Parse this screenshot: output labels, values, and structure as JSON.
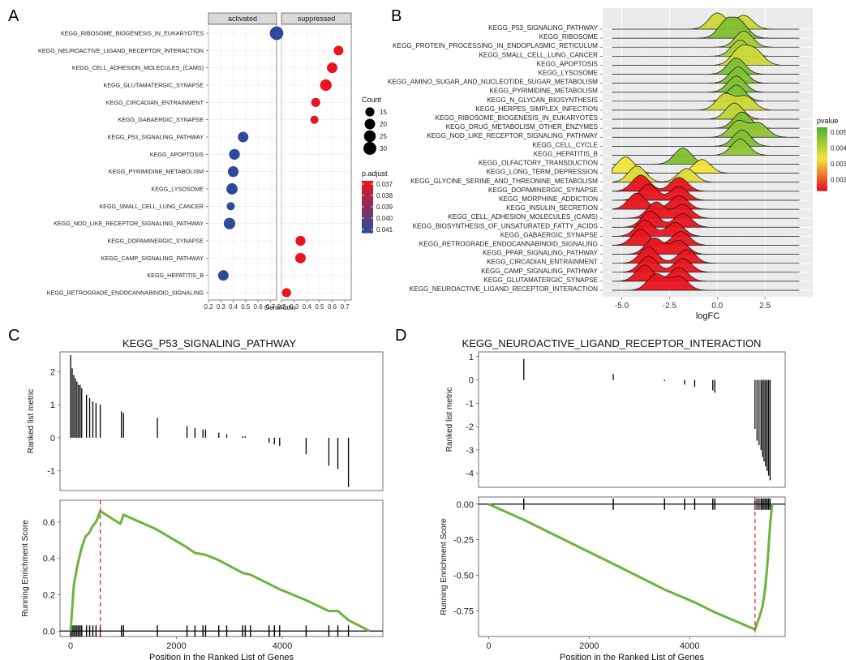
{
  "panel_labels": [
    "A",
    "B",
    "C",
    "D"
  ],
  "chart_data": [
    {
      "type": "scatter",
      "panel": "A",
      "facets": [
        "activated",
        "suppressed"
      ],
      "xlabel": "GeneRatio",
      "xticks": [
        0.2,
        0.3,
        0.4,
        0.5,
        0.6,
        0.7
      ],
      "xlim": [
        0.2,
        0.75
      ],
      "size_legend": {
        "title": "Count",
        "values": [
          15,
          20,
          25,
          30
        ]
      },
      "color_legend": {
        "title": "p.adjust",
        "ticks": [
          "0.037",
          "0.038",
          "0.039",
          "0.040",
          "0.041"
        ],
        "low_color": "#e8141e",
        "high_color": "#2d4a9a"
      },
      "categories": [
        "KEGG_RIBOSOME_BIOGENESIS_IN_EUKARYOTES",
        "KEGG_NEUROACTIVE_LIGAND_RECEPTOR_INTERACTION",
        "KEGG_CELL_ADHESION_MOLECULES_(CAMS)",
        "KEGG_GLUTAMATERGIC_SYNAPSE",
        "KEGG_CIRCADIAN_ENTRAINMENT",
        "KEGG_GABAERGIC_SYNAPSE",
        "KEGG_P53_SIGNALING_PATHWAY",
        "KEGG_APOPTOSIS",
        "KEGG_PYRIMIDINE_METABOLISM",
        "KEGG_LYSOSOME",
        "KEGG_SMALL_CELL_LUNG_CANCER",
        "KEGG_NOD_LIKE_RECEPTOR_SIGNALING_PATHWAY",
        "KEGG_DOPAMINERGIC_SYNAPSE",
        "KEGG_CAMP_SIGNALING_PATHWAY",
        "KEGG_HEPATITIS_B",
        "KEGG_RETROGRADE_ENDOCANNABINOID_SIGNALING"
      ],
      "points": [
        {
          "facet": "activated",
          "cat": 0,
          "x": 0.75,
          "count": 33,
          "color": "#2d4a9a"
        },
        {
          "facet": "suppressed",
          "cat": 1,
          "x": 0.65,
          "count": 17,
          "color": "#e8141e"
        },
        {
          "facet": "suppressed",
          "cat": 2,
          "x": 0.6,
          "count": 20,
          "color": "#e8141e"
        },
        {
          "facet": "suppressed",
          "cat": 3,
          "x": 0.55,
          "count": 24,
          "color": "#e8141e"
        },
        {
          "facet": "suppressed",
          "cat": 4,
          "x": 0.47,
          "count": 15,
          "color": "#e8141e"
        },
        {
          "facet": "suppressed",
          "cat": 5,
          "x": 0.46,
          "count": 12,
          "color": "#e8141e"
        },
        {
          "facet": "activated",
          "cat": 6,
          "x": 0.48,
          "count": 20,
          "color": "#2d4a9a"
        },
        {
          "facet": "activated",
          "cat": 7,
          "x": 0.41,
          "count": 21,
          "color": "#2d4a9a"
        },
        {
          "facet": "activated",
          "cat": 8,
          "x": 0.4,
          "count": 21,
          "color": "#2d4a9a"
        },
        {
          "facet": "activated",
          "cat": 9,
          "x": 0.39,
          "count": 23,
          "color": "#2d4a9a"
        },
        {
          "facet": "activated",
          "cat": 10,
          "x": 0.38,
          "count": 12,
          "color": "#2d4a9a"
        },
        {
          "facet": "activated",
          "cat": 11,
          "x": 0.37,
          "count": 24,
          "color": "#2d4a9a"
        },
        {
          "facet": "suppressed",
          "cat": 12,
          "x": 0.35,
          "count": 18,
          "color": "#e8141e"
        },
        {
          "facet": "suppressed",
          "cat": 13,
          "x": 0.35,
          "count": 20,
          "color": "#e8141e"
        },
        {
          "facet": "activated",
          "cat": 14,
          "x": 0.32,
          "count": 20,
          "color": "#2d4a9a"
        },
        {
          "facet": "suppressed",
          "cat": 15,
          "x": 0.24,
          "count": 15,
          "color": "#e8141e"
        }
      ]
    },
    {
      "type": "area",
      "panel": "B",
      "subtype": "ridgeline",
      "xlabel": "logFC",
      "xticks": [
        -5.0,
        -2.5,
        0.0,
        2.5
      ],
      "xlim": [
        -6,
        5
      ],
      "color_legend": {
        "title": "pvalue",
        "ticks": [
          "0.005",
          "0.004",
          "0.003",
          "0.002"
        ],
        "low_color": "#e8141e",
        "high_color": "#5ab22e"
      },
      "series": [
        {
          "name": "KEGG_P53_SIGNALING_PATHWAY",
          "peaks": [
            0.0,
            1.4
          ],
          "pvalue": 0.004
        },
        {
          "name": "KEGG_RIBOSOME",
          "peaks": [
            0.5,
            1.2
          ],
          "pvalue": 0.005
        },
        {
          "name": "KEGG_PROTEIN_PROCESSING_IN_ENDOPLASMIC_RETICULUM",
          "peaks": [
            1.4
          ],
          "pvalue": 0.0045
        },
        {
          "name": "KEGG_SMALL_CELL_LUNG_CANCER",
          "peaks": [
            1.2
          ],
          "pvalue": 0.0045
        },
        {
          "name": "KEGG_APOPTOSIS",
          "peaks": [
            1.2,
            2.0
          ],
          "pvalue": 0.004
        },
        {
          "name": "KEGG_LYSOSOME",
          "peaks": [
            1.0
          ],
          "pvalue": 0.005
        },
        {
          "name": "KEGG_AMINO_SUGAR_AND_NUCLEOTIDE_SUGAR_METABOLISM",
          "peaks": [
            1.1
          ],
          "pvalue": 0.005
        },
        {
          "name": "KEGG_PYRIMIDINE_METABOLISM",
          "peaks": [
            1.0
          ],
          "pvalue": 0.005
        },
        {
          "name": "KEGG_N_GLYCAN_BIOSYNTHESIS",
          "peaks": [
            1.0
          ],
          "pvalue": 0.005
        },
        {
          "name": "KEGG_HERPES_SIMPLEX_INFECTION",
          "peaks": [
            0.4,
            1.5
          ],
          "pvalue": 0.004
        },
        {
          "name": "KEGG_RIBOSOME_BIOGENESIS_IN_EUKARYOTES",
          "peaks": [
            0.9
          ],
          "pvalue": 0.0042
        },
        {
          "name": "KEGG_DRUG_METABOLISM_OTHER_ENZYMES",
          "peaks": [
            1.3
          ],
          "pvalue": 0.005
        },
        {
          "name": "KEGG_NOD_LIKE_RECEPTOR_SIGNALING_PATHWAY",
          "peaks": [
            1.1,
            2.2
          ],
          "pvalue": 0.0048
        },
        {
          "name": "KEGG_CELL_CYCLE",
          "peaks": [
            1.3
          ],
          "pvalue": 0.005
        },
        {
          "name": "KEGG_HEPATITIS_B",
          "peaks": [
            1.2
          ],
          "pvalue": 0.0048
        },
        {
          "name": "KEGG_OLFACTORY_TRANSDUCTION",
          "peaks": [
            -1.8
          ],
          "pvalue": 0.005
        },
        {
          "name": "KEGG_LONG_TERM_DEPRESSION",
          "peaks": [
            -4.8,
            -0.8
          ],
          "pvalue": 0.0035
        },
        {
          "name": "KEGG_GLYCINE_SERINE_AND_THREONINE_METABOLISM",
          "peaks": [
            -4.2,
            -1.6
          ],
          "pvalue": 0.0038
        },
        {
          "name": "KEGG_DOPAMINERGIC_SYNAPSE",
          "peaks": [
            -4.0,
            -2.0
          ],
          "pvalue": 0.0015
        },
        {
          "name": "KEGG_MORPHINE_ADDICTION",
          "peaks": [
            -3.6,
            -2.0
          ],
          "pvalue": 0.0015
        },
        {
          "name": "KEGG_INSULIN_SECRETION",
          "peaks": [
            -4.2,
            -2.0
          ],
          "pvalue": 0.0015
        },
        {
          "name": "KEGG_CELL_ADHESION_MOLECULES_(CAMS)",
          "peaks": [
            -3.2,
            -1.8
          ],
          "pvalue": 0.0015
        },
        {
          "name": "KEGG_BIOSYNTHESIS_OF_UNSATURATED_FATTY_ACIDS",
          "peaks": [
            -3.5,
            -1.8
          ],
          "pvalue": 0.0015
        },
        {
          "name": "KEGG_GABAERGIC_SYNAPSE",
          "peaks": [
            -3.8,
            -2.2
          ],
          "pvalue": 0.0015
        },
        {
          "name": "KEGG_RETROGRADE_ENDOCANNABINOID_SIGNALING",
          "peaks": [
            -4.0,
            -1.9
          ],
          "pvalue": 0.0015
        },
        {
          "name": "KEGG_PPAR_SIGNALING_PATHWAY",
          "peaks": [
            -3.3,
            -2.0
          ],
          "pvalue": 0.0015
        },
        {
          "name": "KEGG_CIRCADIAN_ENTRAINMENT",
          "peaks": [
            -3.6,
            -1.6
          ],
          "pvalue": 0.0015
        },
        {
          "name": "KEGG_CAMP_SIGNALING_PATHWAY",
          "peaks": [
            -3.6,
            -1.8
          ],
          "pvalue": 0.0015
        },
        {
          "name": "KEGG_GLUTAMATERGIC_SYNAPSE",
          "peaks": [
            -3.8,
            -2.0
          ],
          "pvalue": 0.0015
        },
        {
          "name": "KEGG_NEUROACTIVE_LIGAND_RECEPTOR_INTERACTION",
          "peaks": [
            -3.2,
            -2.0
          ],
          "pvalue": 0.0015
        }
      ]
    },
    {
      "type": "line",
      "panel": "C",
      "title": "KEGG_P53_SIGNALING_PATHWAY",
      "xlabel": "Position in the Ranked List of Genes",
      "xticks": [
        0,
        2000,
        4000
      ],
      "xlim": [
        -200,
        5900
      ],
      "metric_ylabel": "Ranked list metric",
      "metric_yticks": [
        -1,
        0,
        1,
        2
      ],
      "metric_ylim": [
        -1.6,
        2.6
      ],
      "es_ylabel": "Running Enrichment Score",
      "es_yticks": [
        0.0,
        0.2,
        0.4,
        0.6
      ],
      "es_ylim": [
        -0.03,
        0.72
      ],
      "peak_position": 560,
      "line_color": "#6cb33f",
      "cutoff_color": "#e8141e",
      "metric_bars": [
        {
          "x": 0,
          "v": 2.5
        },
        {
          "x": 30,
          "v": 2.1
        },
        {
          "x": 60,
          "v": 1.9
        },
        {
          "x": 90,
          "v": 1.8
        },
        {
          "x": 120,
          "v": 1.7
        },
        {
          "x": 150,
          "v": 1.6
        },
        {
          "x": 180,
          "v": 1.6
        },
        {
          "x": 210,
          "v": 1.5
        },
        {
          "x": 300,
          "v": 1.3
        },
        {
          "x": 360,
          "v": 1.2
        },
        {
          "x": 420,
          "v": 1.1
        },
        {
          "x": 480,
          "v": 1.05
        },
        {
          "x": 560,
          "v": 1.0
        },
        {
          "x": 960,
          "v": 0.8
        },
        {
          "x": 1000,
          "v": 0.75
        },
        {
          "x": 1640,
          "v": 0.6
        },
        {
          "x": 2200,
          "v": 0.35
        },
        {
          "x": 2350,
          "v": 0.3
        },
        {
          "x": 2500,
          "v": 0.25
        },
        {
          "x": 2550,
          "v": 0.25
        },
        {
          "x": 2800,
          "v": 0.15
        },
        {
          "x": 2950,
          "v": 0.1
        },
        {
          "x": 3250,
          "v": 0.05
        },
        {
          "x": 3300,
          "v": 0.05
        },
        {
          "x": 3400,
          "v": 0.0
        },
        {
          "x": 3750,
          "v": -0.15
        },
        {
          "x": 3850,
          "v": -0.2
        },
        {
          "x": 3950,
          "v": -0.25
        },
        {
          "x": 4450,
          "v": -0.5
        },
        {
          "x": 4880,
          "v": -0.85
        },
        {
          "x": 5050,
          "v": -0.95
        },
        {
          "x": 5250,
          "v": -1.5
        }
      ],
      "es_curve": [
        {
          "x": 0,
          "y": 0.0
        },
        {
          "x": 60,
          "y": 0.25
        },
        {
          "x": 120,
          "y": 0.35
        },
        {
          "x": 200,
          "y": 0.45
        },
        {
          "x": 280,
          "y": 0.52
        },
        {
          "x": 350,
          "y": 0.54
        },
        {
          "x": 420,
          "y": 0.58
        },
        {
          "x": 480,
          "y": 0.6
        },
        {
          "x": 560,
          "y": 0.66
        },
        {
          "x": 940,
          "y": 0.59
        },
        {
          "x": 1000,
          "y": 0.64
        },
        {
          "x": 1620,
          "y": 0.56
        },
        {
          "x": 2200,
          "y": 0.46
        },
        {
          "x": 2350,
          "y": 0.43
        },
        {
          "x": 2550,
          "y": 0.42
        },
        {
          "x": 2800,
          "y": 0.39
        },
        {
          "x": 3250,
          "y": 0.32
        },
        {
          "x": 3400,
          "y": 0.31
        },
        {
          "x": 3950,
          "y": 0.23
        },
        {
          "x": 4450,
          "y": 0.17
        },
        {
          "x": 4880,
          "y": 0.11
        },
        {
          "x": 5050,
          "y": 0.11
        },
        {
          "x": 5250,
          "y": 0.06
        },
        {
          "x": 5650,
          "y": 0.0
        }
      ]
    },
    {
      "type": "line",
      "panel": "D",
      "title": "KEGG_NEUROACTIVE_LIGAND_RECEPTOR_INTERACTION",
      "xlabel": "Position in the Ranked List of Genes",
      "xticks": [
        0,
        2000,
        4000
      ],
      "xlim": [
        -200,
        5900
      ],
      "metric_ylabel": "Ranked list metric",
      "metric_yticks": [
        -4,
        -3,
        -2,
        -1,
        0,
        1
      ],
      "metric_ylim": [
        -4.6,
        1.2
      ],
      "es_ylabel": "Running Enrichment Score",
      "es_yticks": [
        -0.75,
        -0.5,
        -0.25,
        0.0
      ],
      "es_ylim": [
        -0.93,
        0.05
      ],
      "peak_position": 5300,
      "line_color": "#6cb33f",
      "cutoff_color": "#e8141e",
      "metric_bars": [
        {
          "x": 700,
          "v": 0.9
        },
        {
          "x": 2480,
          "v": 0.25
        },
        {
          "x": 3500,
          "v": -0.05
        },
        {
          "x": 3900,
          "v": -0.2
        },
        {
          "x": 4100,
          "v": -0.3
        },
        {
          "x": 4460,
          "v": -0.45
        },
        {
          "x": 4500,
          "v": -0.55
        },
        {
          "x": 5300,
          "v": -2.1
        },
        {
          "x": 5340,
          "v": -2.6
        },
        {
          "x": 5380,
          "v": -2.8
        },
        {
          "x": 5420,
          "v": -3.0
        },
        {
          "x": 5450,
          "v": -3.3
        },
        {
          "x": 5480,
          "v": -3.5
        },
        {
          "x": 5510,
          "v": -3.7
        },
        {
          "x": 5540,
          "v": -3.9
        },
        {
          "x": 5570,
          "v": -4.1
        },
        {
          "x": 5600,
          "v": -4.3
        }
      ],
      "es_curve": [
        {
          "x": 0,
          "y": 0.0
        },
        {
          "x": 700,
          "y": -0.11
        },
        {
          "x": 2480,
          "y": -0.42
        },
        {
          "x": 3500,
          "y": -0.6
        },
        {
          "x": 3900,
          "y": -0.66
        },
        {
          "x": 4100,
          "y": -0.69
        },
        {
          "x": 4500,
          "y": -0.76
        },
        {
          "x": 5300,
          "y": -0.88
        },
        {
          "x": 5380,
          "y": -0.8
        },
        {
          "x": 5450,
          "y": -0.72
        },
        {
          "x": 5500,
          "y": -0.6
        },
        {
          "x": 5540,
          "y": -0.45
        },
        {
          "x": 5570,
          "y": -0.3
        },
        {
          "x": 5600,
          "y": -0.15
        },
        {
          "x": 5640,
          "y": 0.0
        }
      ]
    }
  ]
}
